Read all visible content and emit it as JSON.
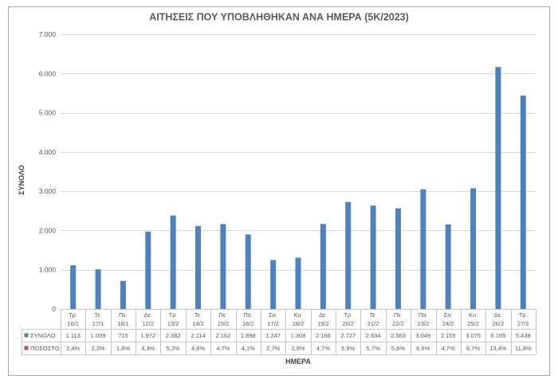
{
  "chart_data": {
    "type": "bar",
    "title": "ΑΙΤΗΣΕΙΣ ΠΟΥ ΥΠΟΒΛΗΘΗΚΑΝ ΑΝΑ ΗΜΕΡΑ (5Κ/2023)",
    "xlabel": "ΗΜΕΡΑ",
    "ylabel": "ΣΥΝΟΛΟ",
    "ylim": [
      0,
      7000
    ],
    "yticks": [
      0,
      1000,
      2000,
      3000,
      4000,
      5000,
      6000,
      7000
    ],
    "grid": true,
    "legend": "data-table",
    "categories": [
      "Τρ 16/1",
      "Τε 17/1",
      "Πε 18/1",
      "Δε 12/2",
      "Τρ 13/2",
      "Τε 14/2",
      "Πε 15/2",
      "Πα 16/2",
      "Σα 17/2",
      "Κυ 18/2",
      "Δε 19/2",
      "Τρ 20/2",
      "Τε 21/2",
      "Πε 22/2",
      "Πα 23/2",
      "Σα 24/2",
      "Κυ 25/2",
      "Δε 26/2",
      "Τρ 27/2"
    ],
    "series": [
      {
        "name": "ΣΥΝΟΛΟ",
        "color": "#4f81bd",
        "values": [
          1113,
          1009,
          715,
          1972,
          2382,
          2114,
          2162,
          1898,
          1247,
          1308,
          2166,
          2727,
          2634,
          2563,
          3049,
          2155,
          3075,
          6165,
          5438
        ]
      },
      {
        "name": "ΠΟΣΟΣΤΟ",
        "color": "#c0504d",
        "unit": "%",
        "values": [
          2.4,
          2.2,
          1.6,
          4.3,
          5.2,
          4.6,
          4.7,
          4.1,
          2.7,
          2.9,
          4.7,
          5.9,
          5.7,
          5.6,
          6.6,
          4.7,
          6.7,
          13.4,
          11.8
        ]
      }
    ]
  }
}
